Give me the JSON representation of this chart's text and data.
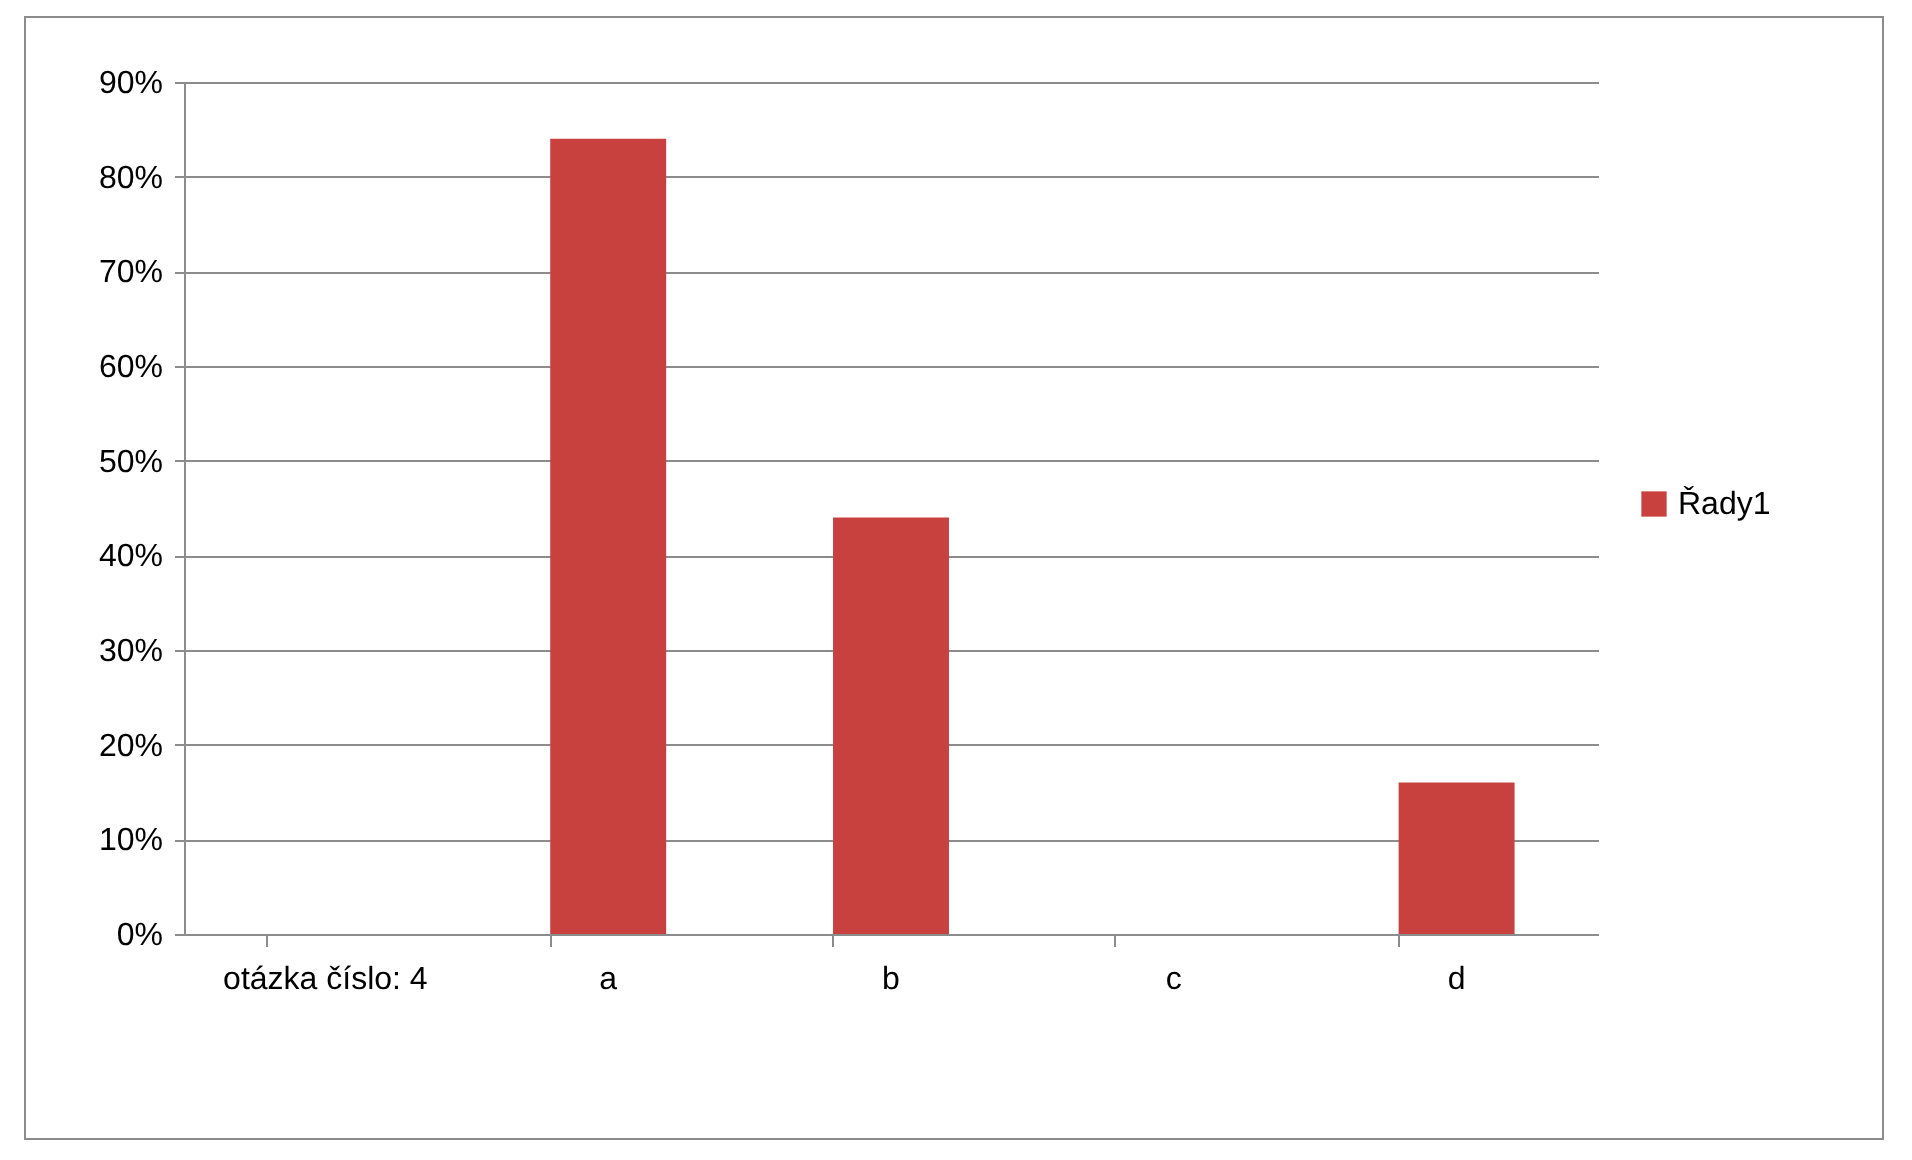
{
  "chart_data": {
    "type": "bar",
    "categories": [
      "otázka číslo: 4",
      "a",
      "b",
      "c",
      "d"
    ],
    "series": [
      {
        "name": "Řady1",
        "color": "#c9413e",
        "values": [
          null,
          84,
          44,
          0,
          16
        ]
      }
    ],
    "ylim": [
      0,
      90
    ],
    "yticks": [
      {
        "value": 0,
        "label": "0%"
      },
      {
        "value": 10,
        "label": "10%"
      },
      {
        "value": 20,
        "label": "20%"
      },
      {
        "value": 30,
        "label": "30%"
      },
      {
        "value": 40,
        "label": "40%"
      },
      {
        "value": 50,
        "label": "50%"
      },
      {
        "value": 60,
        "label": "60%"
      },
      {
        "value": 70,
        "label": "70%"
      },
      {
        "value": 80,
        "label": "80%"
      },
      {
        "value": 90,
        "label": "90%"
      }
    ],
    "grid": "y",
    "legend": "right"
  }
}
